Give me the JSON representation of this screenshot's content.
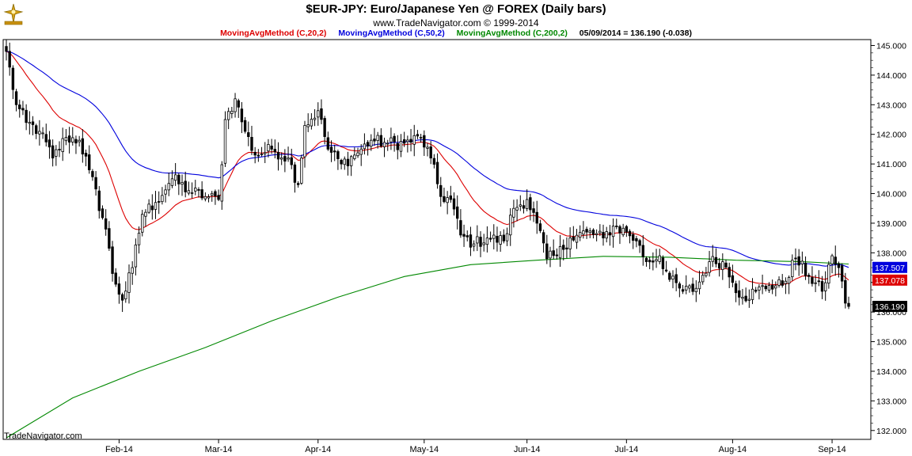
{
  "header": {
    "title": "$EUR-JPY:  Euro/Japanese Yen @ FOREX  (Daily bars)",
    "subtitle": "www.TradeNavigator.com © 1999-2014",
    "legend": [
      {
        "label": "MovingAvgMethod (C,20,2)",
        "color": "#dd0000"
      },
      {
        "label": "MovingAvgMethod (C,50,2)",
        "color": "#0000dd"
      },
      {
        "label": "MovingAvgMethod (C,200,2)",
        "color": "#008800"
      },
      {
        "label": "05/09/2014 = 136.190 (-0.038)",
        "color": "#000000"
      }
    ]
  },
  "footer": {
    "brand": "TradeNavigator.com"
  },
  "chart_data": {
    "type": "candlestick",
    "title": "$EUR-JPY:  Euro/Japanese Yen @ FOREX  (Daily bars)",
    "ylim": [
      131.7,
      145.2
    ],
    "y_ticks": [
      "132.000",
      "133.000",
      "134.000",
      "135.000",
      "136.000",
      "137.000",
      "138.000",
      "139.000",
      "140.000",
      "141.000",
      "142.000",
      "143.000",
      "144.000",
      "145.000"
    ],
    "x_ticks": [
      {
        "label": "Feb-14",
        "index": 34
      },
      {
        "label": "Mar-14",
        "index": 64
      },
      {
        "label": "Apr-14",
        "index": 94
      },
      {
        "label": "May-14",
        "index": 126
      },
      {
        "label": "Jun-14",
        "index": 157
      },
      {
        "label": "Jul-14",
        "index": 187
      },
      {
        "label": "Aug-14",
        "index": 219
      },
      {
        "label": "Sep-14",
        "index": 249
      }
    ],
    "n_bars": 255,
    "anchors": [
      {
        "index": 0,
        "close": 144.8
      },
      {
        "index": 3,
        "close": 143.0
      },
      {
        "index": 6,
        "close": 142.4
      },
      {
        "index": 10,
        "close": 142.1
      },
      {
        "index": 14,
        "close": 141.2
      },
      {
        "index": 18,
        "close": 141.9
      },
      {
        "index": 22,
        "close": 141.8
      },
      {
        "index": 25,
        "close": 140.8
      },
      {
        "index": 30,
        "close": 138.8
      },
      {
        "index": 32,
        "close": 137.3
      },
      {
        "index": 35,
        "close": 136.4
      },
      {
        "index": 38,
        "close": 137.5
      },
      {
        "index": 41,
        "close": 139.3
      },
      {
        "index": 45,
        "close": 139.7
      },
      {
        "index": 50,
        "close": 140.5
      },
      {
        "index": 55,
        "close": 140.1
      },
      {
        "index": 60,
        "close": 139.9
      },
      {
        "index": 64,
        "close": 139.8
      },
      {
        "index": 66,
        "close": 142.5
      },
      {
        "index": 69,
        "close": 143.2
      },
      {
        "index": 72,
        "close": 142.1
      },
      {
        "index": 75,
        "close": 141.3
      },
      {
        "index": 80,
        "close": 141.5
      },
      {
        "index": 85,
        "close": 141.2
      },
      {
        "index": 88,
        "close": 140.3
      },
      {
        "index": 90,
        "close": 142.3
      },
      {
        "index": 94,
        "close": 142.8
      },
      {
        "index": 97,
        "close": 141.5
      },
      {
        "index": 101,
        "close": 141.0
      },
      {
        "index": 105,
        "close": 141.3
      },
      {
        "index": 110,
        "close": 141.8
      },
      {
        "index": 115,
        "close": 141.7
      },
      {
        "index": 120,
        "close": 141.7
      },
      {
        "index": 125,
        "close": 141.9
      },
      {
        "index": 128,
        "close": 141.2
      },
      {
        "index": 131,
        "close": 139.9
      },
      {
        "index": 134,
        "close": 139.8
      },
      {
        "index": 137,
        "close": 138.6
      },
      {
        "index": 141,
        "close": 138.3
      },
      {
        "index": 145,
        "close": 138.5
      },
      {
        "index": 150,
        "close": 138.4
      },
      {
        "index": 153,
        "close": 139.5
      },
      {
        "index": 157,
        "close": 139.8
      },
      {
        "index": 160,
        "close": 139.0
      },
      {
        "index": 163,
        "close": 137.8
      },
      {
        "index": 166,
        "close": 137.9
      },
      {
        "index": 170,
        "close": 138.5
      },
      {
        "index": 175,
        "close": 138.7
      },
      {
        "index": 180,
        "close": 138.5
      },
      {
        "index": 183,
        "close": 138.9
      },
      {
        "index": 187,
        "close": 138.7
      },
      {
        "index": 190,
        "close": 138.4
      },
      {
        "index": 193,
        "close": 137.7
      },
      {
        "index": 197,
        "close": 137.9
      },
      {
        "index": 200,
        "close": 137.1
      },
      {
        "index": 204,
        "close": 136.7
      },
      {
        "index": 208,
        "close": 136.8
      },
      {
        "index": 212,
        "close": 137.7
      },
      {
        "index": 216,
        "close": 137.7
      },
      {
        "index": 219,
        "close": 137.0
      },
      {
        "index": 222,
        "close": 136.5
      },
      {
        "index": 226,
        "close": 136.7
      },
      {
        "index": 230,
        "close": 136.9
      },
      {
        "index": 234,
        "close": 136.9
      },
      {
        "index": 238,
        "close": 137.8
      },
      {
        "index": 242,
        "close": 137.2
      },
      {
        "index": 246,
        "close": 136.7
      },
      {
        "index": 249,
        "close": 137.9
      },
      {
        "index": 251,
        "close": 137.5
      },
      {
        "index": 253,
        "close": 136.3
      },
      {
        "index": 254,
        "close": 136.19
      }
    ],
    "moving_averages": [
      {
        "name": "MovingAvgMethod (C,20,2)",
        "period": 20,
        "color": "#dd0000",
        "last": 137.078,
        "label": "137.078"
      },
      {
        "name": "MovingAvgMethod (C,50,2)",
        "period": 50,
        "color": "#0000dd",
        "last": 137.507,
        "label": "137.507"
      },
      {
        "name": "MovingAvgMethod (C,200,2)",
        "period": 200,
        "color": "#008800",
        "points": [
          [
            0,
            131.75
          ],
          [
            20,
            133.1
          ],
          [
            40,
            134.0
          ],
          [
            60,
            134.8
          ],
          [
            80,
            135.7
          ],
          [
            100,
            136.5
          ],
          [
            120,
            137.2
          ],
          [
            140,
            137.6
          ],
          [
            160,
            137.75
          ],
          [
            180,
            137.88
          ],
          [
            200,
            137.85
          ],
          [
            220,
            137.75
          ],
          [
            240,
            137.7
          ],
          [
            254,
            137.62
          ]
        ]
      }
    ],
    "last_price": {
      "value": 136.19,
      "label": "136.190"
    },
    "price_tags": [
      {
        "label": "137.507",
        "value": 137.507,
        "bg": "#0000dd",
        "color": "#ffffff"
      },
      {
        "label": "137.078",
        "value": 137.078,
        "bg": "#dd0000",
        "color": "#ffffff"
      },
      {
        "label": "136.190",
        "value": 136.19,
        "bg": "#000000",
        "color": "#ffffff"
      }
    ],
    "colors": {
      "bull": "#ffffff",
      "bear": "#000000",
      "wick": "#000000"
    },
    "grid": false
  }
}
